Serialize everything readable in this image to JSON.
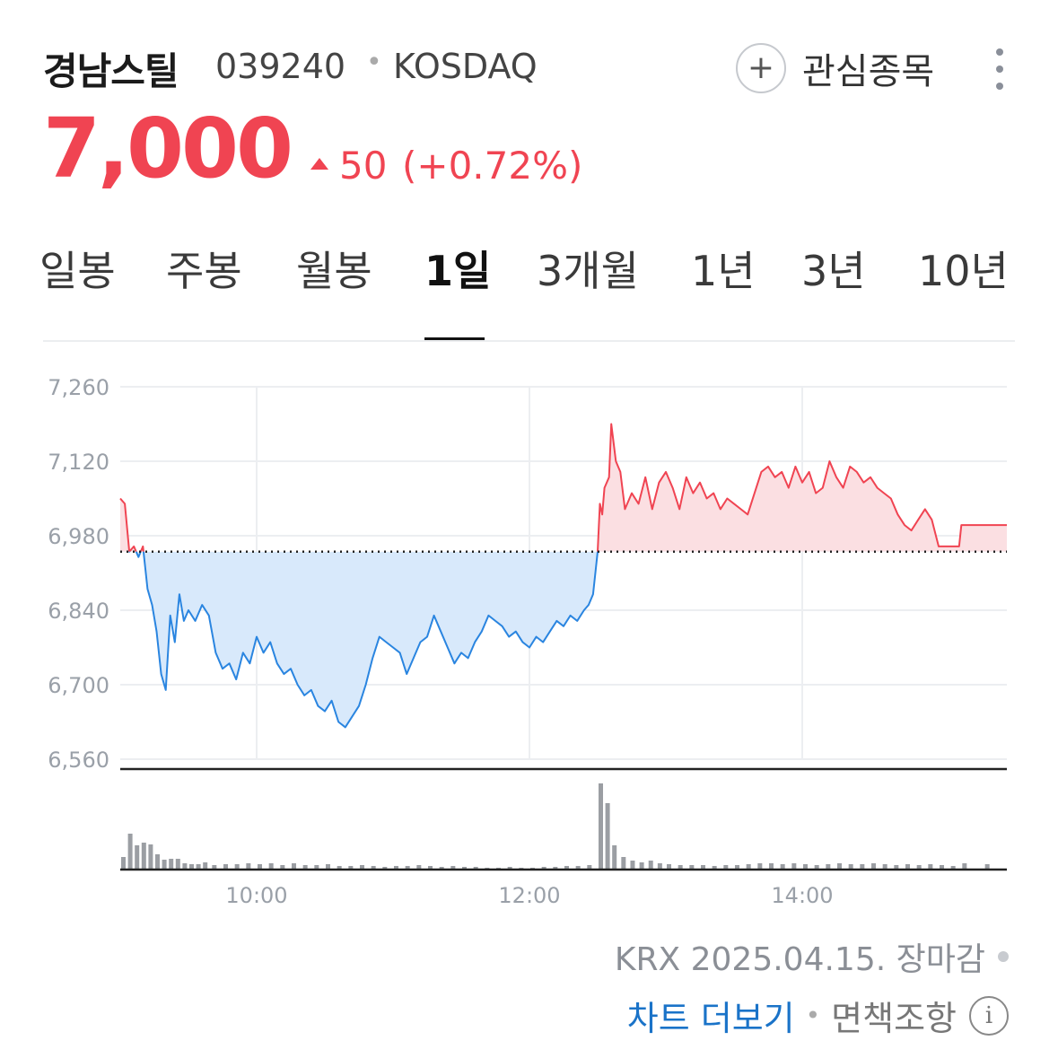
{
  "header": {
    "name": "경남스틸",
    "code": "039240",
    "separator": "•",
    "market": "KOSDAQ",
    "watch_plus": "+",
    "watch_label": "관심종목"
  },
  "quote": {
    "price": "7,000",
    "change": "50",
    "change_rate": "(+0.72%)",
    "direction": "up",
    "color_up": "#f04452",
    "color_down": "#2a85e0"
  },
  "tabs": [
    {
      "label": "일봉",
      "active": false
    },
    {
      "label": "주봉",
      "active": false
    },
    {
      "label": "월봉",
      "active": false
    },
    {
      "label": "1일",
      "active": true
    },
    {
      "label": "3개월",
      "active": false
    },
    {
      "label": "1년",
      "active": false
    },
    {
      "label": "3년",
      "active": false
    },
    {
      "label": "10년",
      "active": false
    }
  ],
  "chart_data": {
    "type": "area",
    "x_unit": "time (HH:MM)",
    "previous_close": 6950,
    "ylim": [
      6560,
      7260
    ],
    "y_ticks": [
      "7,260",
      "7,120",
      "6,980",
      "6,840",
      "6,700",
      "6,560"
    ],
    "y_tick_values": [
      7260,
      7120,
      6980,
      6840,
      6700,
      6560
    ],
    "x_ticks": [
      "10:00",
      "12:00",
      "14:00"
    ],
    "x_tick_values": [
      "10:00",
      "12:00",
      "14:00"
    ],
    "xlim": [
      "09:00",
      "15:30"
    ],
    "grid": true,
    "up_color": "#f04452",
    "down_color": "#2a85e0",
    "price_points": [
      [
        "09:00",
        7050
      ],
      [
        "09:02",
        7040
      ],
      [
        "09:04",
        6950
      ],
      [
        "09:06",
        6960
      ],
      [
        "09:08",
        6940
      ],
      [
        "09:10",
        6960
      ],
      [
        "09:12",
        6880
      ],
      [
        "09:14",
        6850
      ],
      [
        "09:16",
        6800
      ],
      [
        "09:18",
        6720
      ],
      [
        "09:20",
        6690
      ],
      [
        "09:22",
        6830
      ],
      [
        "09:24",
        6780
      ],
      [
        "09:26",
        6870
      ],
      [
        "09:28",
        6820
      ],
      [
        "09:30",
        6840
      ],
      [
        "09:33",
        6820
      ],
      [
        "09:36",
        6850
      ],
      [
        "09:39",
        6830
      ],
      [
        "09:42",
        6760
      ],
      [
        "09:45",
        6730
      ],
      [
        "09:48",
        6740
      ],
      [
        "09:51",
        6710
      ],
      [
        "09:54",
        6760
      ],
      [
        "09:57",
        6740
      ],
      [
        "10:00",
        6790
      ],
      [
        "10:03",
        6760
      ],
      [
        "10:06",
        6780
      ],
      [
        "10:09",
        6740
      ],
      [
        "10:12",
        6720
      ],
      [
        "10:15",
        6730
      ],
      [
        "10:18",
        6700
      ],
      [
        "10:21",
        6680
      ],
      [
        "10:24",
        6690
      ],
      [
        "10:27",
        6660
      ],
      [
        "10:30",
        6650
      ],
      [
        "10:33",
        6670
      ],
      [
        "10:36",
        6630
      ],
      [
        "10:39",
        6620
      ],
      [
        "10:42",
        6640
      ],
      [
        "10:45",
        6660
      ],
      [
        "10:48",
        6700
      ],
      [
        "10:51",
        6750
      ],
      [
        "10:54",
        6790
      ],
      [
        "10:57",
        6780
      ],
      [
        "11:00",
        6770
      ],
      [
        "11:03",
        6760
      ],
      [
        "11:06",
        6720
      ],
      [
        "11:09",
        6750
      ],
      [
        "11:12",
        6780
      ],
      [
        "11:15",
        6790
      ],
      [
        "11:18",
        6830
      ],
      [
        "11:21",
        6800
      ],
      [
        "11:24",
        6770
      ],
      [
        "11:27",
        6740
      ],
      [
        "11:30",
        6760
      ],
      [
        "11:33",
        6750
      ],
      [
        "11:36",
        6780
      ],
      [
        "11:39",
        6800
      ],
      [
        "11:42",
        6830
      ],
      [
        "11:45",
        6820
      ],
      [
        "11:48",
        6810
      ],
      [
        "11:51",
        6790
      ],
      [
        "11:54",
        6800
      ],
      [
        "11:57",
        6780
      ],
      [
        "12:00",
        6770
      ],
      [
        "12:03",
        6790
      ],
      [
        "12:06",
        6780
      ],
      [
        "12:09",
        6800
      ],
      [
        "12:12",
        6820
      ],
      [
        "12:15",
        6810
      ],
      [
        "12:18",
        6830
      ],
      [
        "12:21",
        6820
      ],
      [
        "12:24",
        6840
      ],
      [
        "12:26",
        6850
      ],
      [
        "12:28",
        6870
      ],
      [
        "12:30",
        6950
      ],
      [
        "12:31",
        7040
      ],
      [
        "12:32",
        7020
      ],
      [
        "12:33",
        7070
      ],
      [
        "12:35",
        7090
      ],
      [
        "12:36",
        7190
      ],
      [
        "12:38",
        7120
      ],
      [
        "12:40",
        7100
      ],
      [
        "12:42",
        7030
      ],
      [
        "12:45",
        7060
      ],
      [
        "12:48",
        7040
      ],
      [
        "12:51",
        7090
      ],
      [
        "12:54",
        7030
      ],
      [
        "12:57",
        7080
      ],
      [
        "13:00",
        7100
      ],
      [
        "13:03",
        7070
      ],
      [
        "13:06",
        7030
      ],
      [
        "13:09",
        7090
      ],
      [
        "13:12",
        7060
      ],
      [
        "13:15",
        7080
      ],
      [
        "13:18",
        7050
      ],
      [
        "13:21",
        7060
      ],
      [
        "13:24",
        7030
      ],
      [
        "13:27",
        7050
      ],
      [
        "13:30",
        7040
      ],
      [
        "13:33",
        7030
      ],
      [
        "13:36",
        7020
      ],
      [
        "13:39",
        7060
      ],
      [
        "13:42",
        7100
      ],
      [
        "13:45",
        7110
      ],
      [
        "13:48",
        7090
      ],
      [
        "13:51",
        7100
      ],
      [
        "13:54",
        7070
      ],
      [
        "13:57",
        7110
      ],
      [
        "14:00",
        7080
      ],
      [
        "14:03",
        7100
      ],
      [
        "14:06",
        7060
      ],
      [
        "14:09",
        7070
      ],
      [
        "14:12",
        7120
      ],
      [
        "14:15",
        7090
      ],
      [
        "14:18",
        7070
      ],
      [
        "14:21",
        7110
      ],
      [
        "14:24",
        7100
      ],
      [
        "14:27",
        7080
      ],
      [
        "14:30",
        7090
      ],
      [
        "14:33",
        7070
      ],
      [
        "14:36",
        7060
      ],
      [
        "14:39",
        7050
      ],
      [
        "14:42",
        7020
      ],
      [
        "14:45",
        7000
      ],
      [
        "14:48",
        6990
      ],
      [
        "14:51",
        7010
      ],
      [
        "14:54",
        7030
      ],
      [
        "14:57",
        7010
      ],
      [
        "15:00",
        6960
      ],
      [
        "15:03",
        6960
      ],
      [
        "15:06",
        6960
      ],
      [
        "15:09",
        6960
      ],
      [
        "15:10",
        7000
      ],
      [
        "15:30",
        7000
      ]
    ],
    "volume_bars": [
      [
        "09:00",
        0.14
      ],
      [
        "09:03",
        0.4
      ],
      [
        "09:06",
        0.27
      ],
      [
        "09:09",
        0.3
      ],
      [
        "09:12",
        0.28
      ],
      [
        "09:15",
        0.17
      ],
      [
        "09:18",
        0.11
      ],
      [
        "09:21",
        0.12
      ],
      [
        "09:24",
        0.12
      ],
      [
        "09:27",
        0.07
      ],
      [
        "09:30",
        0.06
      ],
      [
        "09:33",
        0.06
      ],
      [
        "09:36",
        0.08
      ],
      [
        "09:40",
        0.05
      ],
      [
        "09:45",
        0.06
      ],
      [
        "09:50",
        0.06
      ],
      [
        "09:55",
        0.07
      ],
      [
        "10:00",
        0.06
      ],
      [
        "10:05",
        0.07
      ],
      [
        "10:10",
        0.05
      ],
      [
        "10:15",
        0.07
      ],
      [
        "10:20",
        0.05
      ],
      [
        "10:25",
        0.05
      ],
      [
        "10:30",
        0.06
      ],
      [
        "10:35",
        0.04
      ],
      [
        "10:40",
        0.04
      ],
      [
        "10:45",
        0.05
      ],
      [
        "10:50",
        0.04
      ],
      [
        "10:55",
        0.03
      ],
      [
        "11:00",
        0.04
      ],
      [
        "11:05",
        0.04
      ],
      [
        "11:10",
        0.05
      ],
      [
        "11:15",
        0.04
      ],
      [
        "11:20",
        0.03
      ],
      [
        "11:25",
        0.04
      ],
      [
        "11:30",
        0.03
      ],
      [
        "11:35",
        0.03
      ],
      [
        "11:40",
        0.02
      ],
      [
        "11:45",
        0.02
      ],
      [
        "11:50",
        0.03
      ],
      [
        "11:55",
        0.02
      ],
      [
        "12:00",
        0.02
      ],
      [
        "12:05",
        0.03
      ],
      [
        "12:10",
        0.03
      ],
      [
        "12:15",
        0.04
      ],
      [
        "12:20",
        0.04
      ],
      [
        "12:25",
        0.05
      ],
      [
        "12:30",
        0.96
      ],
      [
        "12:33",
        0.74
      ],
      [
        "12:36",
        0.27
      ],
      [
        "12:40",
        0.14
      ],
      [
        "12:44",
        0.1
      ],
      [
        "12:48",
        0.08
      ],
      [
        "12:52",
        0.1
      ],
      [
        "12:56",
        0.07
      ],
      [
        "13:00",
        0.06
      ],
      [
        "13:05",
        0.05
      ],
      [
        "13:10",
        0.05
      ],
      [
        "13:15",
        0.05
      ],
      [
        "13:20",
        0.04
      ],
      [
        "13:25",
        0.05
      ],
      [
        "13:30",
        0.05
      ],
      [
        "13:35",
        0.06
      ],
      [
        "13:40",
        0.07
      ],
      [
        "13:45",
        0.07
      ],
      [
        "13:50",
        0.06
      ],
      [
        "13:55",
        0.07
      ],
      [
        "14:00",
        0.06
      ],
      [
        "14:05",
        0.05
      ],
      [
        "14:10",
        0.06
      ],
      [
        "14:15",
        0.07
      ],
      [
        "14:20",
        0.06
      ],
      [
        "14:25",
        0.06
      ],
      [
        "14:30",
        0.07
      ],
      [
        "14:35",
        0.06
      ],
      [
        "14:40",
        0.05
      ],
      [
        "14:45",
        0.06
      ],
      [
        "14:50",
        0.05
      ],
      [
        "14:55",
        0.06
      ],
      [
        "15:00",
        0.05
      ],
      [
        "15:05",
        0.04
      ],
      [
        "15:10",
        0.07
      ],
      [
        "15:20",
        0.06
      ]
    ]
  },
  "footer": {
    "exchange_info": "KRX 2025.04.15. 장마감",
    "more_chart": "차트 더보기",
    "separator": "•",
    "disclaimer": "면책조항",
    "info_glyph": "i"
  }
}
